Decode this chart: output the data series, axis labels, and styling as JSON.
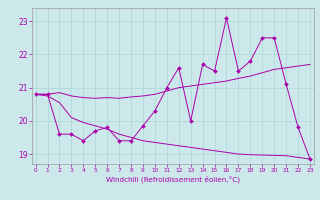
{
  "xlabel": "Windchill (Refroidissement éolien,°C)",
  "background_color": "#cce8ea",
  "line_color": "#aa00aa",
  "grid_color": "#aad8d8",
  "ylim": [
    18.7,
    23.4
  ],
  "xlim": [
    -0.3,
    23.3
  ],
  "yticks": [
    19,
    20,
    21,
    22,
    23
  ],
  "xticks": [
    0,
    1,
    2,
    3,
    4,
    5,
    6,
    7,
    8,
    9,
    10,
    11,
    12,
    13,
    14,
    15,
    16,
    17,
    18,
    19,
    20,
    21,
    22,
    23
  ],
  "series_main": [
    20.8,
    20.8,
    19.6,
    19.6,
    19.4,
    19.7,
    19.8,
    19.4,
    19.4,
    19.85,
    20.3,
    21.0,
    21.6,
    20.0,
    21.7,
    21.5,
    23.1,
    21.5,
    21.8,
    22.5,
    22.5,
    21.1,
    19.8,
    18.85
  ],
  "series_low": [
    20.8,
    20.75,
    20.55,
    20.1,
    19.95,
    19.85,
    19.75,
    19.6,
    19.5,
    19.4,
    19.35,
    19.3,
    19.25,
    19.2,
    19.15,
    19.1,
    19.05,
    19.0,
    18.98,
    18.97,
    18.96,
    18.95,
    18.9,
    18.85
  ],
  "series_high": [
    20.8,
    20.8,
    20.85,
    20.75,
    20.7,
    20.68,
    20.7,
    20.68,
    20.72,
    20.75,
    20.8,
    20.9,
    21.0,
    21.05,
    21.1,
    21.15,
    21.2,
    21.28,
    21.35,
    21.45,
    21.55,
    21.6,
    21.65,
    21.7
  ]
}
